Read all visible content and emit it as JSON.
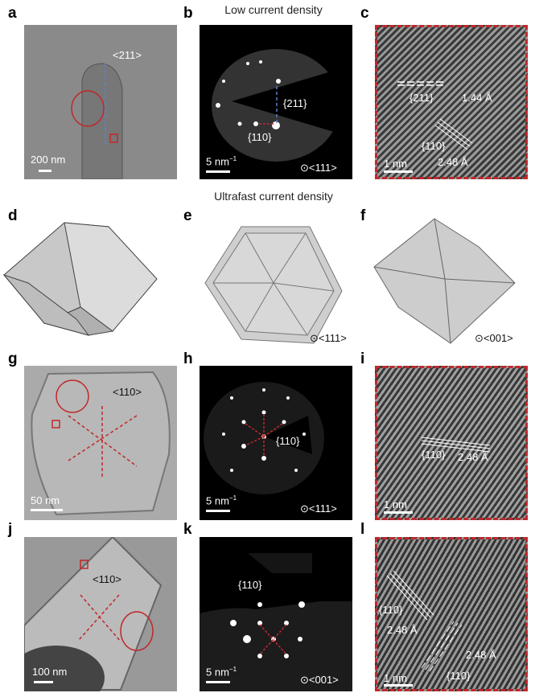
{
  "row_titles": {
    "top": "Low current density",
    "middle": "Ultrafast current density"
  },
  "panels": {
    "a": {
      "label": "a",
      "direction": "<211>",
      "scale": "200 nm"
    },
    "b": {
      "label": "b",
      "plane1": "{211}",
      "plane2": "{110}",
      "scale": "5 nm",
      "scale_exp": "−1",
      "zone": "⊙<111>"
    },
    "c": {
      "label": "c",
      "plane1": "{211}",
      "spacing1": "1.44 Å",
      "plane2": "{110}",
      "spacing2": "2.48 Å",
      "scale": "1 nm"
    },
    "d": {
      "label": "d"
    },
    "e": {
      "label": "e",
      "zone": "⊙<111>"
    },
    "f": {
      "label": "f",
      "zone": "⊙<001>"
    },
    "g": {
      "label": "g",
      "direction": "<110>",
      "scale": "50 nm"
    },
    "h": {
      "label": "h",
      "plane": "{110}",
      "scale": "5 nm",
      "scale_exp": "−1",
      "zone": "⊙<111>"
    },
    "i": {
      "label": "i",
      "plane": "{110}",
      "spacing": "2.48 Å",
      "scale": "1 nm"
    },
    "j": {
      "label": "j",
      "direction": "<110>",
      "scale": "100 nm"
    },
    "k": {
      "label": "k",
      "plane": "{110}",
      "scale": "5 nm",
      "scale_exp": "−1",
      "zone": "⊙<001>"
    },
    "l": {
      "label": "l",
      "plane1": "{110}",
      "spacing1": "2.48 Å",
      "plane2": "{110}",
      "spacing2": "2.48 Å",
      "scale": "1 nm"
    }
  },
  "colors": {
    "accent_red": "#c0282a",
    "arrow_blue": "#5b7fc7"
  }
}
